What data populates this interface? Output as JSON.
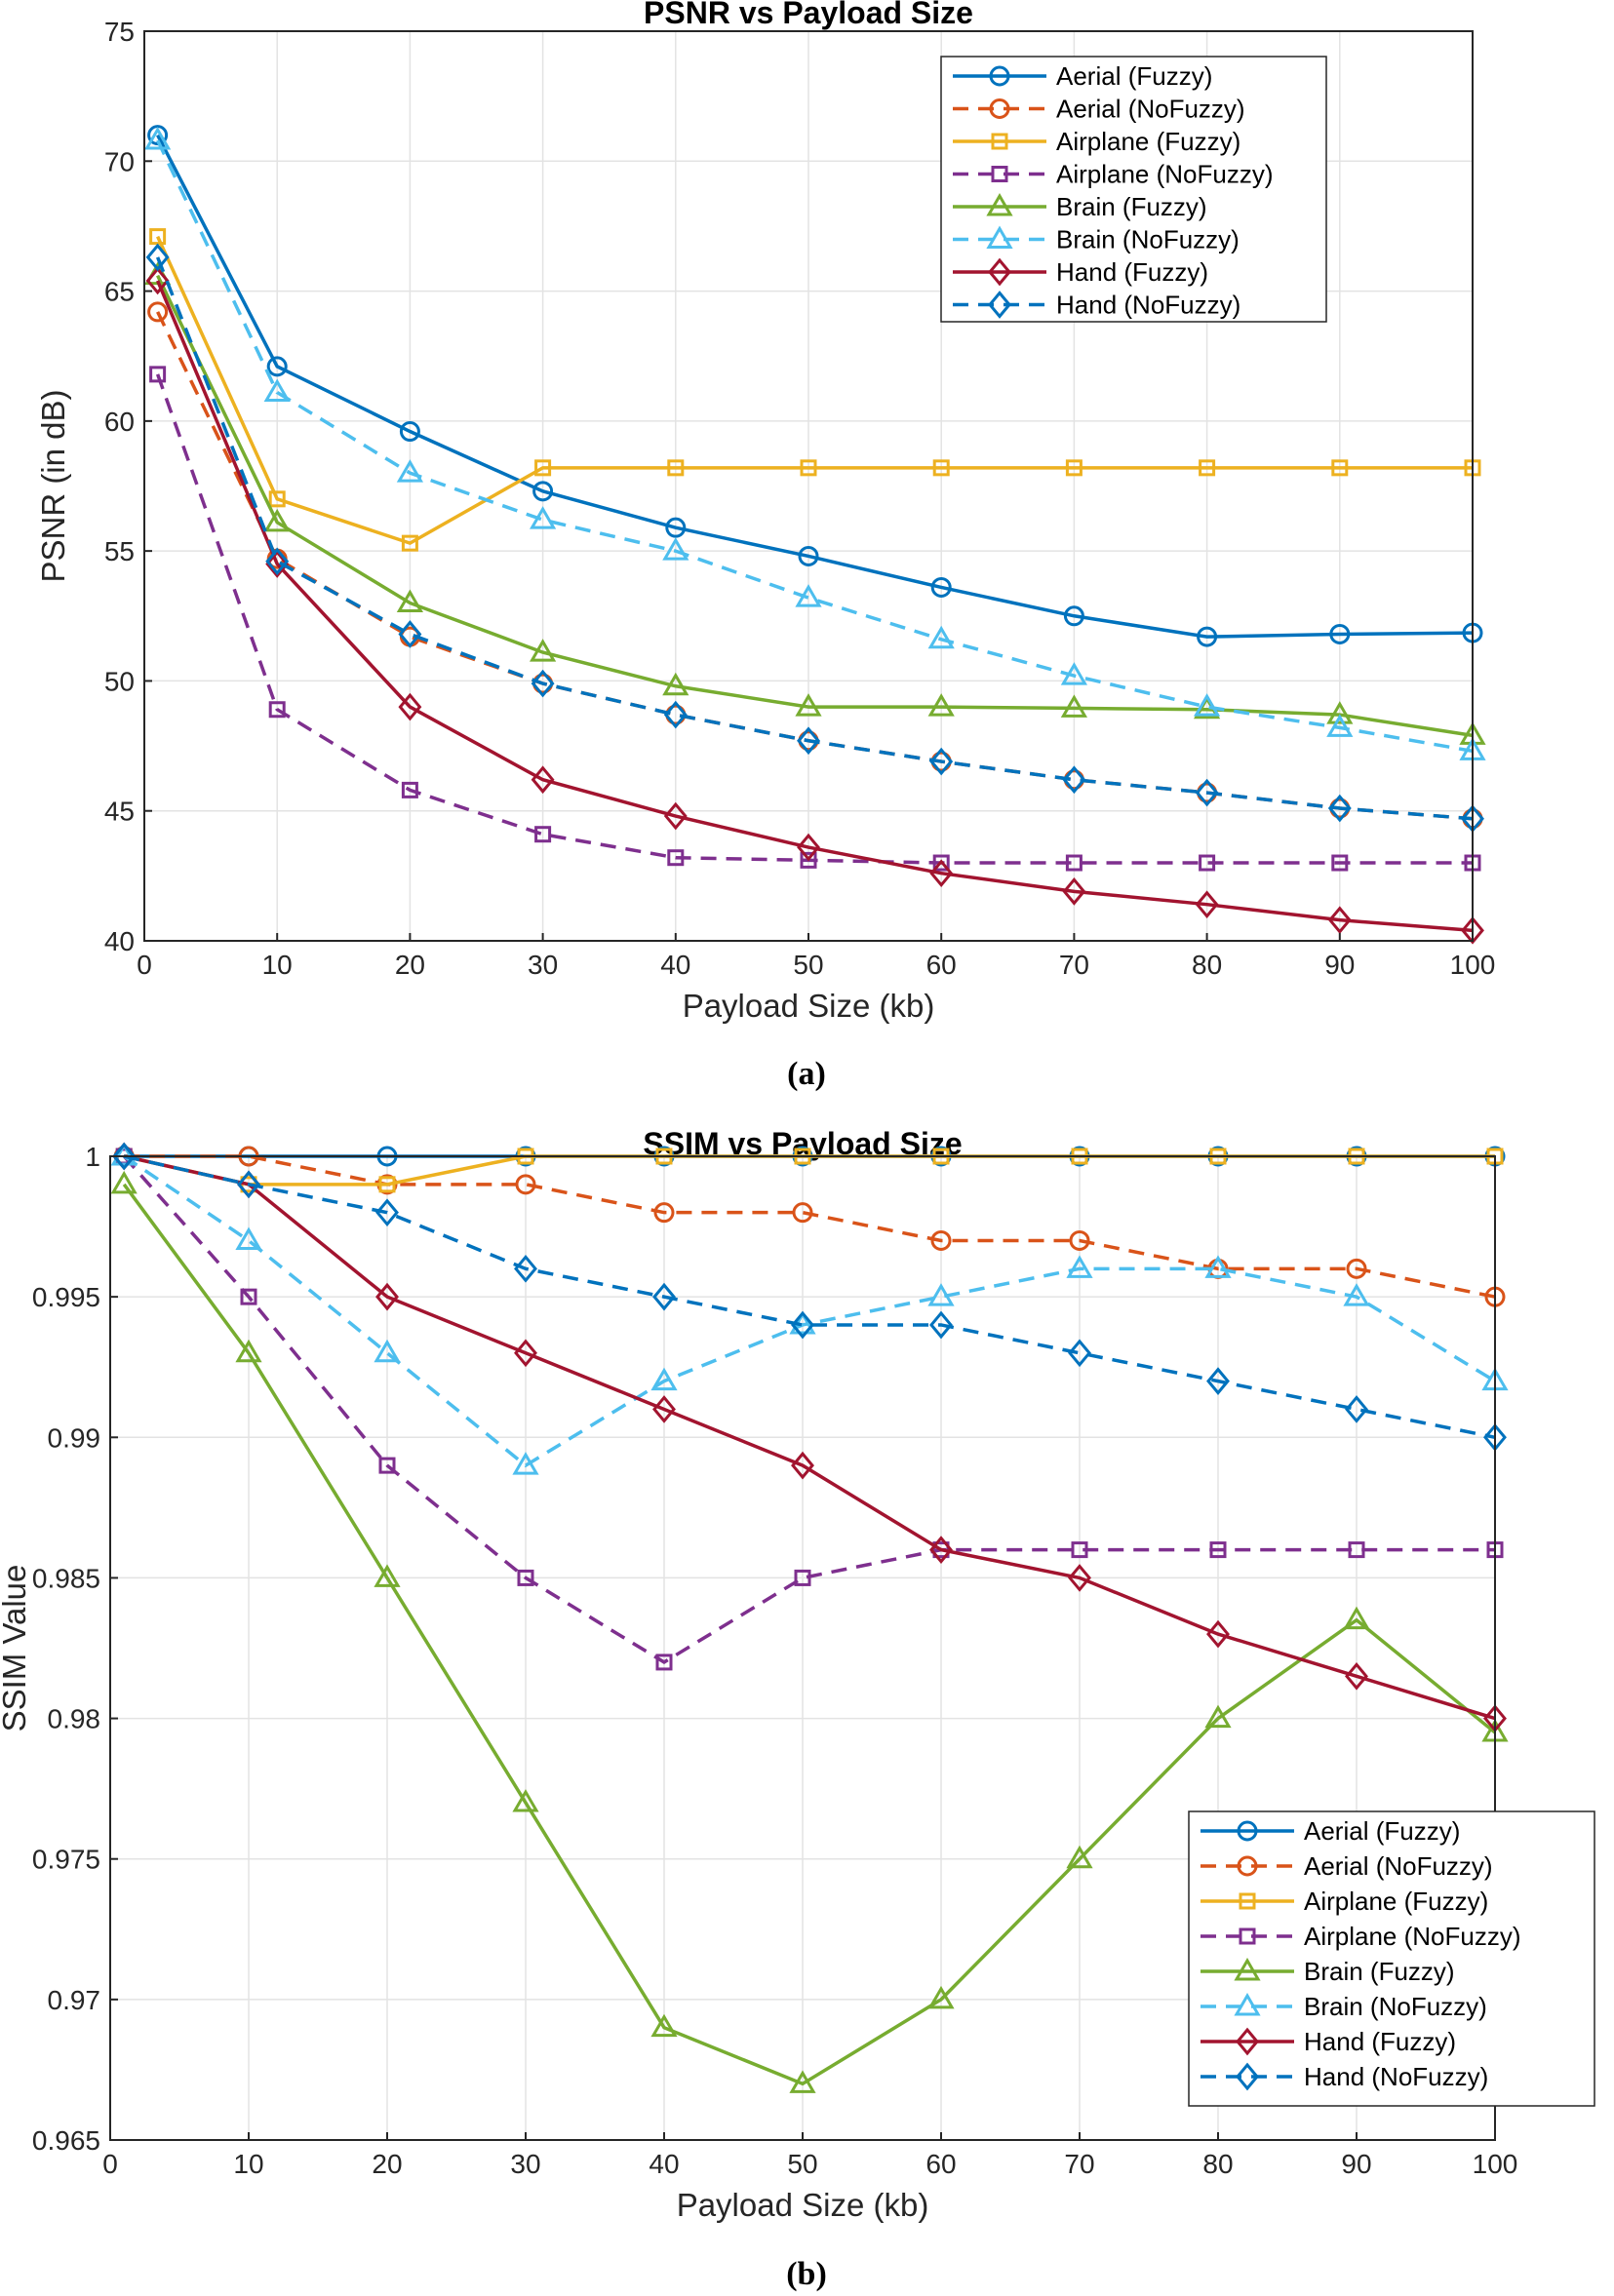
{
  "chart_data": [
    {
      "type": "line",
      "title": "PSNR vs Payload Size",
      "xlabel": "Payload Size (kb)",
      "ylabel": "PSNR (in dB)",
      "caption": "(a)",
      "xlim": [
        0,
        100
      ],
      "ylim": [
        40,
        75
      ],
      "xticks": [
        0,
        10,
        20,
        30,
        40,
        50,
        60,
        70,
        80,
        90,
        100
      ],
      "yticks": [
        40,
        45,
        50,
        55,
        60,
        65,
        70,
        75
      ],
      "x": [
        1,
        10,
        20,
        30,
        40,
        50,
        60,
        70,
        80,
        90,
        100
      ],
      "grid": true,
      "legend_position": "top-right",
      "series": [
        {
          "name": "Aerial (Fuzzy)",
          "color": "#0072BD",
          "dash": false,
          "marker": "circle",
          "values": [
            71.0,
            62.1,
            59.6,
            57.3,
            55.9,
            54.8,
            53.6,
            52.5,
            51.7,
            51.8,
            51.85
          ]
        },
        {
          "name": "Aerial (NoFuzzy)",
          "color": "#D95319",
          "dash": true,
          "marker": "circle",
          "values": [
            64.2,
            54.7,
            51.7,
            49.9,
            48.7,
            47.7,
            46.9,
            46.2,
            45.7,
            45.1,
            44.7
          ]
        },
        {
          "name": "Airplane (Fuzzy)",
          "color": "#EDB120",
          "dash": false,
          "marker": "square",
          "values": [
            67.1,
            57.0,
            55.3,
            58.2,
            58.2,
            58.2,
            58.2,
            58.2,
            58.2,
            58.2,
            58.2
          ]
        },
        {
          "name": "Airplane (NoFuzzy)",
          "color": "#7E2F8E",
          "dash": true,
          "marker": "square",
          "values": [
            61.8,
            48.9,
            45.8,
            44.1,
            43.2,
            43.1,
            43.0,
            43.0,
            43.0,
            43.0,
            43.0
          ]
        },
        {
          "name": "Brain (Fuzzy)",
          "color": "#77AC30",
          "dash": false,
          "marker": "triangle",
          "values": [
            65.6,
            56.1,
            53.0,
            51.1,
            49.8,
            49.0,
            49.0,
            48.95,
            48.9,
            48.7,
            47.9
          ]
        },
        {
          "name": "Brain (NoFuzzy)",
          "color": "#4DBEEE",
          "dash": true,
          "marker": "triangle",
          "values": [
            70.8,
            61.1,
            58.0,
            56.2,
            55.0,
            53.2,
            51.6,
            50.2,
            49.0,
            48.2,
            47.3
          ]
        },
        {
          "name": "Hand (Fuzzy)",
          "color": "#A2142F",
          "dash": false,
          "marker": "diamond",
          "values": [
            65.4,
            54.5,
            49.0,
            46.2,
            44.8,
            43.6,
            42.6,
            41.9,
            41.4,
            40.8,
            40.4
          ]
        },
        {
          "name": "Hand (NoFuzzy)",
          "color": "#0072BD",
          "dash": true,
          "marker": "diamond",
          "values": [
            66.3,
            54.6,
            51.8,
            49.9,
            48.7,
            47.7,
            46.9,
            46.2,
            45.7,
            45.1,
            44.7
          ]
        }
      ]
    },
    {
      "type": "line",
      "title": "SSIM vs Payload Size",
      "xlabel": "Payload Size (kb)",
      "ylabel": "SSIM Value",
      "caption": "(b)",
      "xlim": [
        0,
        100
      ],
      "ylim": [
        0.965,
        1.0
      ],
      "xticks": [
        0,
        10,
        20,
        30,
        40,
        50,
        60,
        70,
        80,
        90,
        100
      ],
      "yticks": [
        0.965,
        0.97,
        0.975,
        0.98,
        0.985,
        0.99,
        0.995,
        1
      ],
      "ytick_labels": [
        "0.965",
        "0.97",
        "0.975",
        "0.98",
        "0.985",
        "0.99",
        "0.995",
        "1"
      ],
      "x": [
        1,
        10,
        20,
        30,
        40,
        50,
        60,
        70,
        80,
        90,
        100
      ],
      "grid": true,
      "legend_position": "bottom-right",
      "series": [
        {
          "name": "Aerial (Fuzzy)",
          "color": "#0072BD",
          "dash": false,
          "marker": "circle",
          "values": [
            1.0,
            1.0,
            1.0,
            1.0,
            1.0,
            1.0,
            1.0,
            1.0,
            1.0,
            1.0,
            1.0
          ]
        },
        {
          "name": "Aerial (NoFuzzy)",
          "color": "#D95319",
          "dash": true,
          "marker": "circle",
          "values": [
            1.0,
            1.0,
            0.999,
            0.999,
            0.998,
            0.998,
            0.997,
            0.997,
            0.996,
            0.996,
            0.995
          ]
        },
        {
          "name": "Airplane (Fuzzy)",
          "color": "#EDB120",
          "dash": false,
          "marker": "square",
          "values": [
            1.0,
            0.999,
            0.999,
            1.0,
            1.0,
            1.0,
            1.0,
            1.0,
            1.0,
            1.0,
            1.0
          ]
        },
        {
          "name": "Airplane (NoFuzzy)",
          "color": "#7E2F8E",
          "dash": true,
          "marker": "square",
          "values": [
            1.0,
            0.995,
            0.989,
            0.985,
            0.982,
            0.985,
            0.986,
            0.986,
            0.986,
            0.986,
            0.986
          ]
        },
        {
          "name": "Brain (Fuzzy)",
          "color": "#77AC30",
          "dash": false,
          "marker": "triangle",
          "values": [
            0.999,
            0.993,
            0.985,
            0.977,
            0.969,
            0.967,
            0.97,
            0.975,
            0.98,
            0.9835,
            0.9795
          ]
        },
        {
          "name": "Brain (NoFuzzy)",
          "color": "#4DBEEE",
          "dash": true,
          "marker": "triangle",
          "values": [
            1.0,
            0.997,
            0.993,
            0.989,
            0.992,
            0.994,
            0.995,
            0.996,
            0.996,
            0.995,
            0.992
          ]
        },
        {
          "name": "Hand (Fuzzy)",
          "color": "#A2142F",
          "dash": false,
          "marker": "diamond",
          "values": [
            1.0,
            0.999,
            0.995,
            0.993,
            0.991,
            0.989,
            0.986,
            0.985,
            0.983,
            0.9815,
            0.98
          ]
        },
        {
          "name": "Hand (NoFuzzy)",
          "color": "#0072BD",
          "dash": true,
          "marker": "diamond",
          "values": [
            1.0,
            0.999,
            0.998,
            0.996,
            0.995,
            0.994,
            0.994,
            0.993,
            0.992,
            0.991,
            0.99
          ]
        }
      ]
    }
  ]
}
